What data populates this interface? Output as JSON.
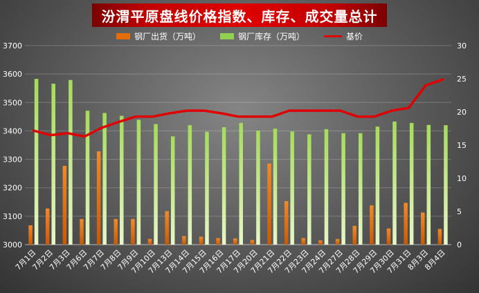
{
  "chart_data": {
    "type": "bar",
    "title": "汾渭平原盘线价格指数、库存、成交量总计",
    "categories": [
      "7月1日",
      "7月2日",
      "7月3日",
      "7月6日",
      "7月7日",
      "7月8日",
      "7月9日",
      "7月10日",
      "7月13日",
      "7月14日",
      "7月15日",
      "7月16日",
      "7月17日",
      "7月20日",
      "7月21日",
      "7月22日",
      "7月23日",
      "7月24日",
      "7月27日",
      "7月28日",
      "7月29日",
      "7月30日",
      "7月31日",
      "8月3日",
      "8月4日"
    ],
    "series": [
      {
        "name": "钢厂出货（万吨）",
        "type": "bar",
        "axis": "left",
        "color": "#e46c0a",
        "values": [
          3068,
          3127,
          3277,
          3090,
          3328,
          3090,
          3090,
          3020,
          3118,
          3030,
          3028,
          3023,
          3022,
          3016,
          3285,
          3153,
          3023,
          3015,
          3020,
          3066,
          3138,
          3057,
          3147,
          3113,
          3055
        ]
      },
      {
        "name": "钢厂库存（万吨）",
        "type": "bar",
        "axis": "left",
        "color": "#92d050",
        "values": [
          3583,
          3566,
          3579,
          3471,
          3463,
          3453,
          3439,
          3424,
          3381,
          3420,
          3397,
          3413,
          3428,
          3401,
          3408,
          3398,
          3388,
          3406,
          3392,
          3392,
          3415,
          3433,
          3428,
          3421,
          3420
        ]
      },
      {
        "name": "基价",
        "type": "line",
        "axis": "right",
        "color": "#e00000",
        "values": [
          17.2,
          16.5,
          16.8,
          16.3,
          17.6,
          18.5,
          19.3,
          19.3,
          19.8,
          20.2,
          20.2,
          19.8,
          19.3,
          19.3,
          19.3,
          20.2,
          20.2,
          20.2,
          20.2,
          19.3,
          19.3,
          20.2,
          20.6,
          24.0,
          24.9
        ]
      }
    ],
    "y_left": {
      "min": 3000,
      "max": 3700,
      "ticks": [
        3000,
        3100,
        3200,
        3300,
        3400,
        3500,
        3600,
        3700
      ]
    },
    "y_right": {
      "min": 0,
      "max": 30,
      "ticks": [
        0,
        5,
        10,
        15,
        20,
        25,
        30
      ]
    },
    "legend_position": "top",
    "grid": true
  }
}
